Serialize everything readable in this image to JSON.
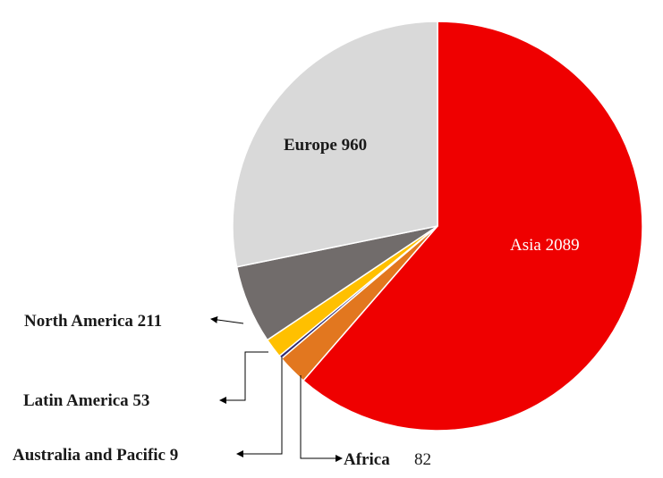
{
  "chart_data": {
    "type": "pie",
    "title": "",
    "slices": [
      {
        "name": "Asia",
        "value": 2089,
        "label": "Asia  2089",
        "color": "#ef0000"
      },
      {
        "name": "Africa",
        "value": 82,
        "label": "Africa",
        "value_label": "82",
        "color": "#e2771f"
      },
      {
        "name": "Australia and Pacific",
        "value": 9,
        "label": "Australia and  Pacific 9",
        "color": "#2e2a73"
      },
      {
        "name": "Latin America",
        "value": 53,
        "label": "Latin  America  53",
        "color": "#ffc000"
      },
      {
        "name": "North America",
        "value": 211,
        "label": "North America 211",
        "color": "#716c6b"
      },
      {
        "name": "Europe",
        "value": 960,
        "label": "Europe  960",
        "color": "#d9d9d9"
      }
    ],
    "start_angle_deg": 0,
    "direction": "clockwise",
    "legend": "none"
  }
}
